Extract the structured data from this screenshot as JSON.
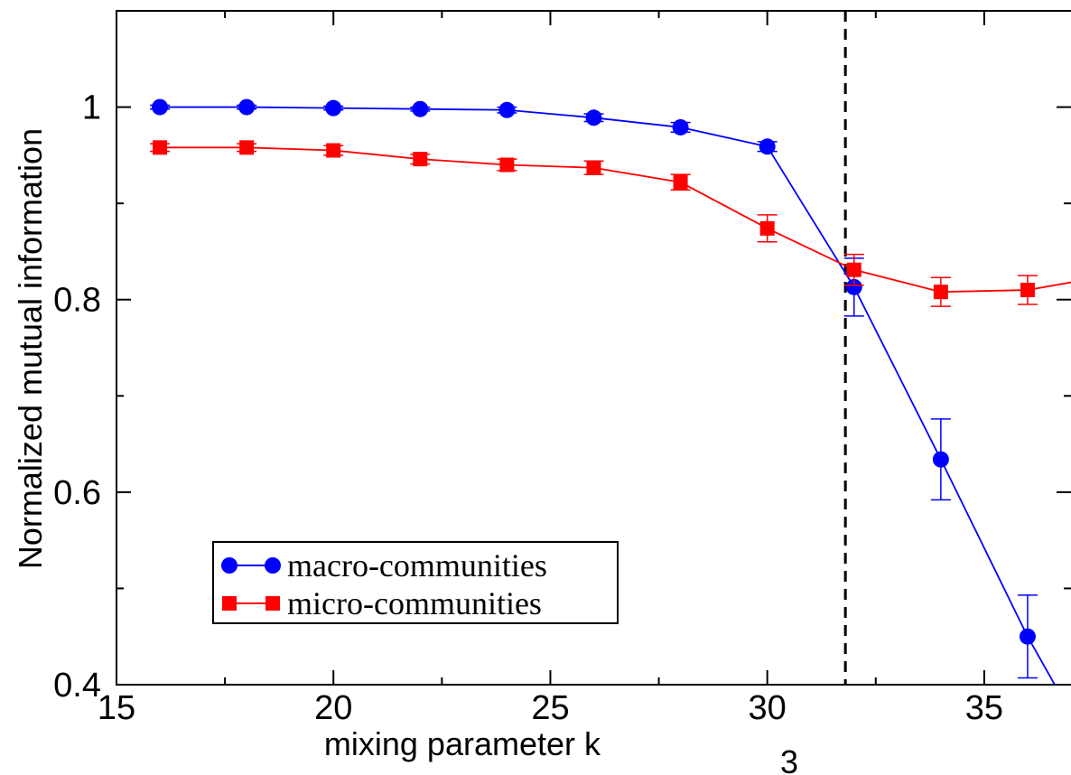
{
  "chart_data": {
    "type": "line",
    "xlabel": "mixing parameter k",
    "xlabel_subscript": "3",
    "ylabel": "Normalized mutual information",
    "xlim": [
      15,
      37
    ],
    "ylim": [
      0.4,
      1.1
    ],
    "xticks": [
      "15",
      "20",
      "25",
      "30",
      "35"
    ],
    "yticks": [
      "0.4",
      "0.6",
      "0.8",
      "1"
    ],
    "threshold_x": 31.8,
    "grid": false,
    "legend_position": "bottom-left",
    "series": [
      {
        "name": "macro-communities",
        "color": "#0000ff",
        "marker": "circle",
        "x": [
          16,
          18,
          20,
          22,
          24,
          26,
          28,
          30,
          32,
          34,
          36,
          37
        ],
        "y": [
          1.0,
          1.0,
          0.999,
          0.998,
          0.997,
          0.989,
          0.979,
          0.959,
          0.813,
          0.634,
          0.45,
          0.37
        ],
        "err": [
          0.002,
          0.002,
          0.002,
          0.002,
          0.003,
          0.004,
          0.005,
          0.005,
          0.03,
          0.042,
          0.043,
          0
        ],
        "markers": [
          true,
          true,
          true,
          true,
          true,
          true,
          true,
          true,
          true,
          true,
          true,
          false
        ]
      },
      {
        "name": "micro-communities",
        "color": "#ff0000",
        "marker": "square",
        "x": [
          16,
          18,
          20,
          22,
          24,
          26,
          28,
          30,
          32,
          34,
          36,
          37
        ],
        "y": [
          0.958,
          0.958,
          0.955,
          0.946,
          0.94,
          0.937,
          0.922,
          0.874,
          0.831,
          0.808,
          0.81,
          0.818
        ],
        "err": [
          0.004,
          0.004,
          0.005,
          0.005,
          0.006,
          0.007,
          0.008,
          0.014,
          0.016,
          0.015,
          0.015,
          0
        ],
        "markers": [
          true,
          true,
          true,
          true,
          true,
          true,
          true,
          true,
          true,
          true,
          true,
          false
        ]
      }
    ]
  }
}
